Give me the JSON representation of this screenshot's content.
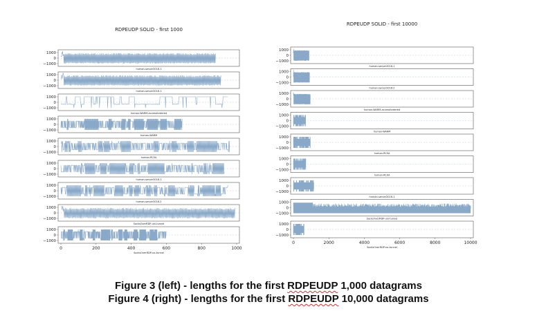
{
  "captions": {
    "line1_pre": "Figure 3 (left) - lengths for the first ",
    "line1_term": "RDPEUDP",
    "line1_post": " 1,000 datagrams",
    "line2_pre": "Figure 4 (right) - lengths for the first ",
    "line2_term": "RDPEUDP",
    "line2_post": " 10,000 datagrams"
  },
  "colors": {
    "trace": "#8aa9c8",
    "axis": "#555555",
    "dashed": "#b9cde0",
    "text": "#222222"
  },
  "chart_data": [
    {
      "type": "line",
      "title": "RDPEUDP SOLID - first 1000",
      "xlim": [
        0,
        1000
      ],
      "xticks": [
        "0",
        "200",
        "400",
        "600",
        "800",
        "1000"
      ],
      "ylim": [
        -1500,
        1500
      ],
      "yticks": [
        "1000",
        "0",
        "−1000"
      ],
      "subplots": [
        {
          "label": "human-server2016-1",
          "n": 880,
          "style": "dense",
          "seed": 11
        },
        {
          "label": "human-server2016-1",
          "n": 910,
          "style": "dense",
          "seed": 12
        },
        {
          "label": "human-WARM-accessfordered",
          "n": 950,
          "style": "sparse",
          "seed": 13
        },
        {
          "label": "human-WARM",
          "n": 690,
          "style": "blocks",
          "seed": 14
        },
        {
          "label": "human-RC0A",
          "n": 960,
          "style": "blocks",
          "seed": 15
        },
        {
          "label": "human-server2016-1",
          "n": 930,
          "style": "blocks",
          "seed": 16
        },
        {
          "label": "human-server2016-2",
          "n": 950,
          "style": "blocks",
          "seed": 17
        },
        {
          "label": "SocksOverRDP-uni-tunnel",
          "n": 990,
          "style": "dense",
          "seed": 18
        },
        {
          "label": "",
          "n": 600,
          "style": "blocks",
          "seed": 19
        }
      ],
      "xlabel": "SocksOverRDP-no-tunnel"
    },
    {
      "type": "line",
      "title": "RDPEUDP SOLID - first 10000",
      "xlim": [
        0,
        10000
      ],
      "xticks": [
        "0",
        "2000",
        "4000",
        "6000",
        "8000",
        "10000"
      ],
      "ylim": [
        -1500,
        1500
      ],
      "yticks": [
        "1000",
        "0",
        "−1000"
      ],
      "subplots": [
        {
          "label": "human-server2016-1",
          "n": 880,
          "style": "dense",
          "seed": 21
        },
        {
          "label": "human-server2016-2",
          "n": 910,
          "style": "dense",
          "seed": 22
        },
        {
          "label": "human-WARM-accessfordered",
          "n": 950,
          "style": "dense",
          "seed": 23
        },
        {
          "label": "human-WARM",
          "n": 690,
          "style": "blocks",
          "seed": 24
        },
        {
          "label": "human-RC0A",
          "n": 960,
          "style": "blocks",
          "seed": 25
        },
        {
          "label": "human-RC0A",
          "n": 700,
          "style": "blocks",
          "seed": 26
        },
        {
          "label": "human-server2016-1",
          "n": 1150,
          "style": "blocks",
          "seed": 27
        },
        {
          "label": "SocksOverRDP-uni-tunnel",
          "n": 10000,
          "style": "long",
          "seed": 28
        },
        {
          "label": "",
          "n": 600,
          "style": "blocks",
          "seed": 29
        }
      ],
      "xlabel": "SocksOverRDP-no-tunnel"
    }
  ]
}
